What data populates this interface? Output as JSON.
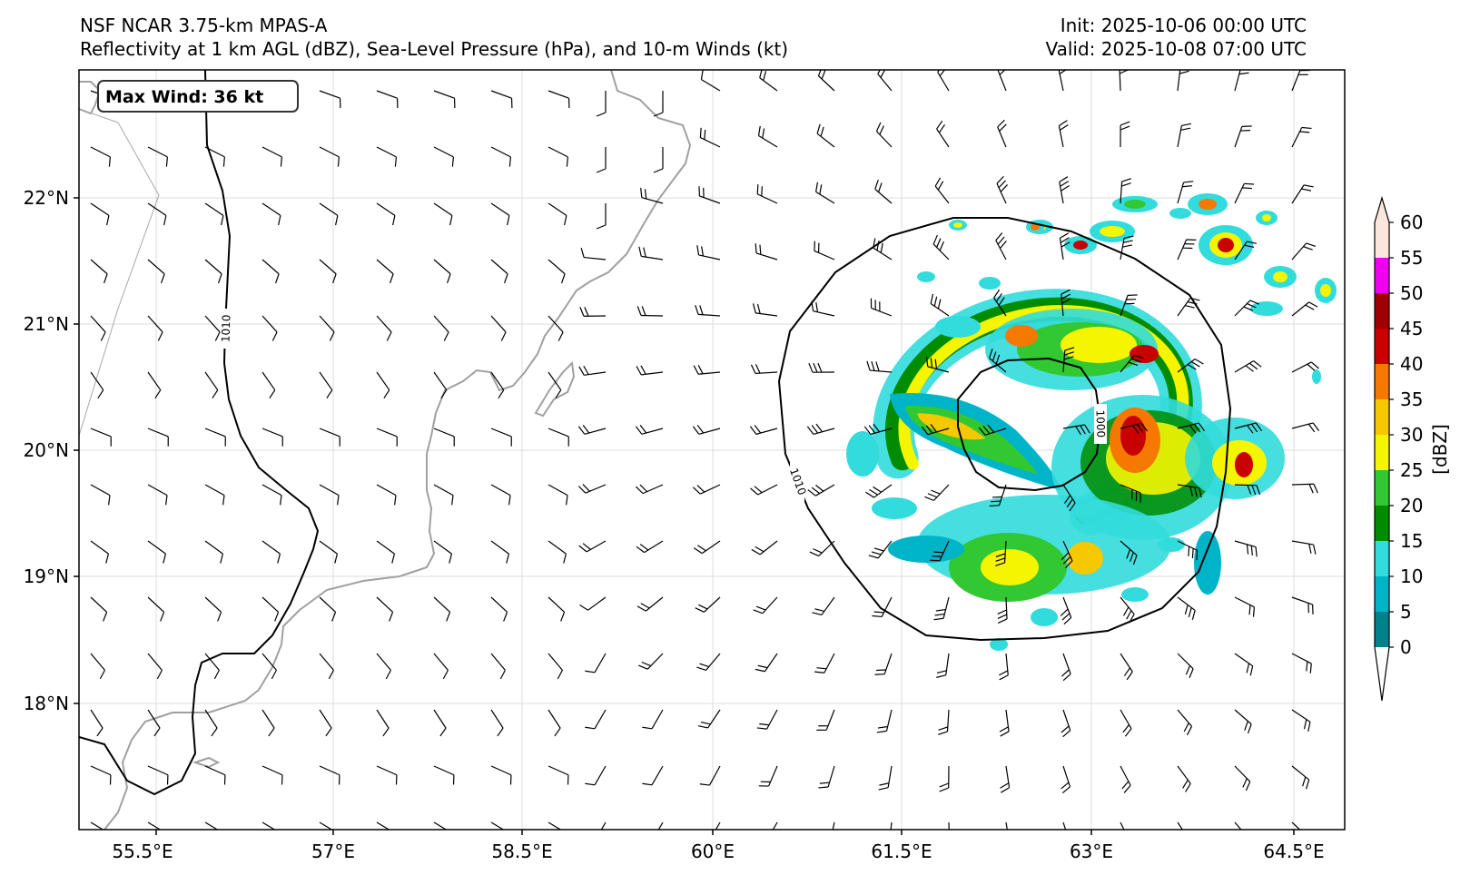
{
  "header": {
    "model_title": "NSF NCAR 3.75-km MPAS-A",
    "fields_title": "Reflectivity at 1 km AGL (dBZ), Sea-Level Pressure (hPa), and 10-m Winds (kt)",
    "init": "Init: 2025-10-06 00:00 UTC",
    "valid": "Valid: 2025-10-08 07:00 UTC"
  },
  "map": {
    "lon_ticks": [
      "55.5°E",
      "57°E",
      "58.5°E",
      "60°E",
      "61.5°E",
      "63°E",
      "64.5°E"
    ],
    "lat_ticks": [
      "22°N",
      "21°N",
      "20°N",
      "19°N",
      "18°N"
    ],
    "max_wind_label": "Max Wind: 36 kt",
    "contour_labels": [
      "1010",
      "1010",
      "1000"
    ],
    "coast_color": "#a0a0a0",
    "contour_color": "#000000"
  },
  "colorbar": {
    "label": "[dBZ]",
    "ticks": [
      "0",
      "5",
      "10",
      "15",
      "20",
      "25",
      "30",
      "35",
      "40",
      "45",
      "50",
      "55",
      "60"
    ],
    "colors": [
      "#ffffff",
      "#00828c",
      "#00b4c8",
      "#32dcdc",
      "#008c00",
      "#32c832",
      "#f5f500",
      "#f5c800",
      "#f57800",
      "#c80000",
      "#a00000",
      "#f000f0",
      "#fae6dc"
    ]
  }
}
